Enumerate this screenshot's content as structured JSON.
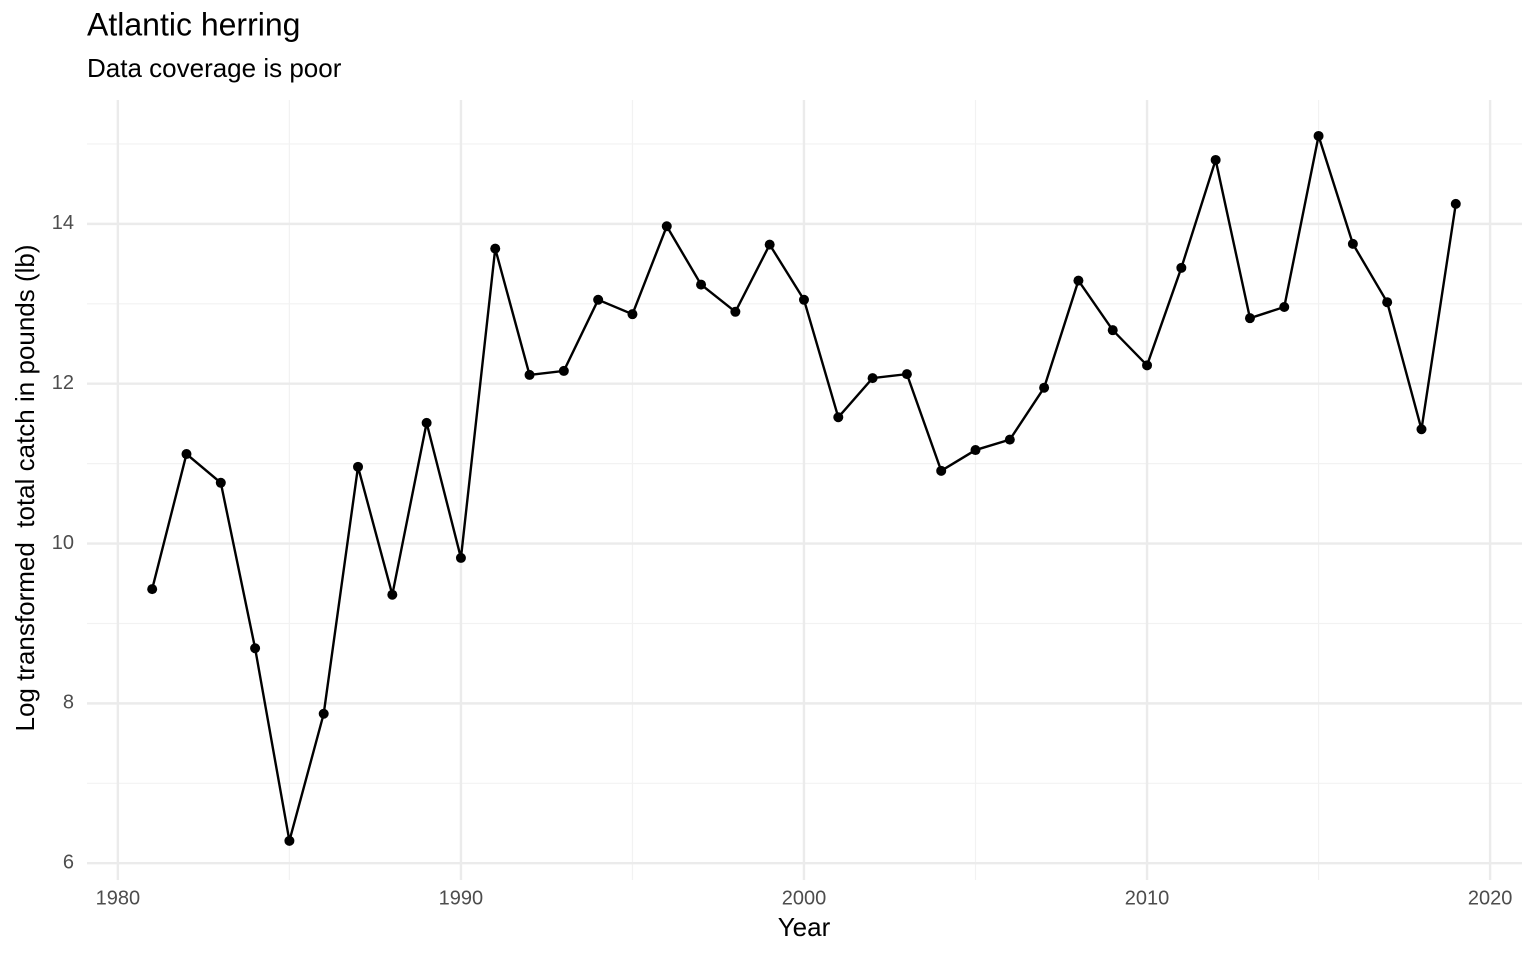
{
  "chart_data": {
    "type": "line",
    "title": "Atlantic herring",
    "subtitle": "Data coverage is poor",
    "x_label": "Year",
    "y_label": "Log transformed  total catch in pounds (lb)",
    "x": [
      1981,
      1982,
      1983,
      1984,
      1985,
      1986,
      1987,
      1988,
      1989,
      1990,
      1991,
      1992,
      1993,
      1994,
      1995,
      1996,
      1997,
      1998,
      1999,
      2000,
      2001,
      2002,
      2003,
      2004,
      2005,
      2006,
      2007,
      2008,
      2009,
      2010,
      2011,
      2012,
      2013,
      2014,
      2015,
      2016,
      2017,
      2018,
      2019
    ],
    "series": [
      {
        "color": "#000000",
        "values": [
          9.43,
          11.12,
          10.76,
          8.69,
          6.28,
          7.87,
          10.96,
          9.36,
          11.51,
          9.82,
          13.69,
          12.11,
          12.16,
          13.05,
          12.87,
          13.97,
          13.24,
          12.9,
          13.74,
          13.05,
          11.58,
          12.07,
          12.12,
          10.91,
          11.17,
          11.3,
          11.95,
          13.29,
          12.67,
          12.23,
          13.45,
          14.8,
          12.82,
          12.96,
          15.1,
          13.75,
          13.02,
          11.43,
          14.25
        ]
      }
    ],
    "xlim": [
      1979.1,
      2020.93
    ],
    "ylim": [
      5.79,
      15.55
    ],
    "xticks": [
      1980,
      1990,
      2000,
      2010,
      2020
    ],
    "yticks": [
      6,
      8,
      10,
      12,
      14
    ],
    "x_minor_ticks": [
      1985,
      1995,
      2005,
      2015
    ],
    "y_minor_ticks": [
      7,
      9,
      11,
      13,
      15
    ],
    "grid": true
  }
}
